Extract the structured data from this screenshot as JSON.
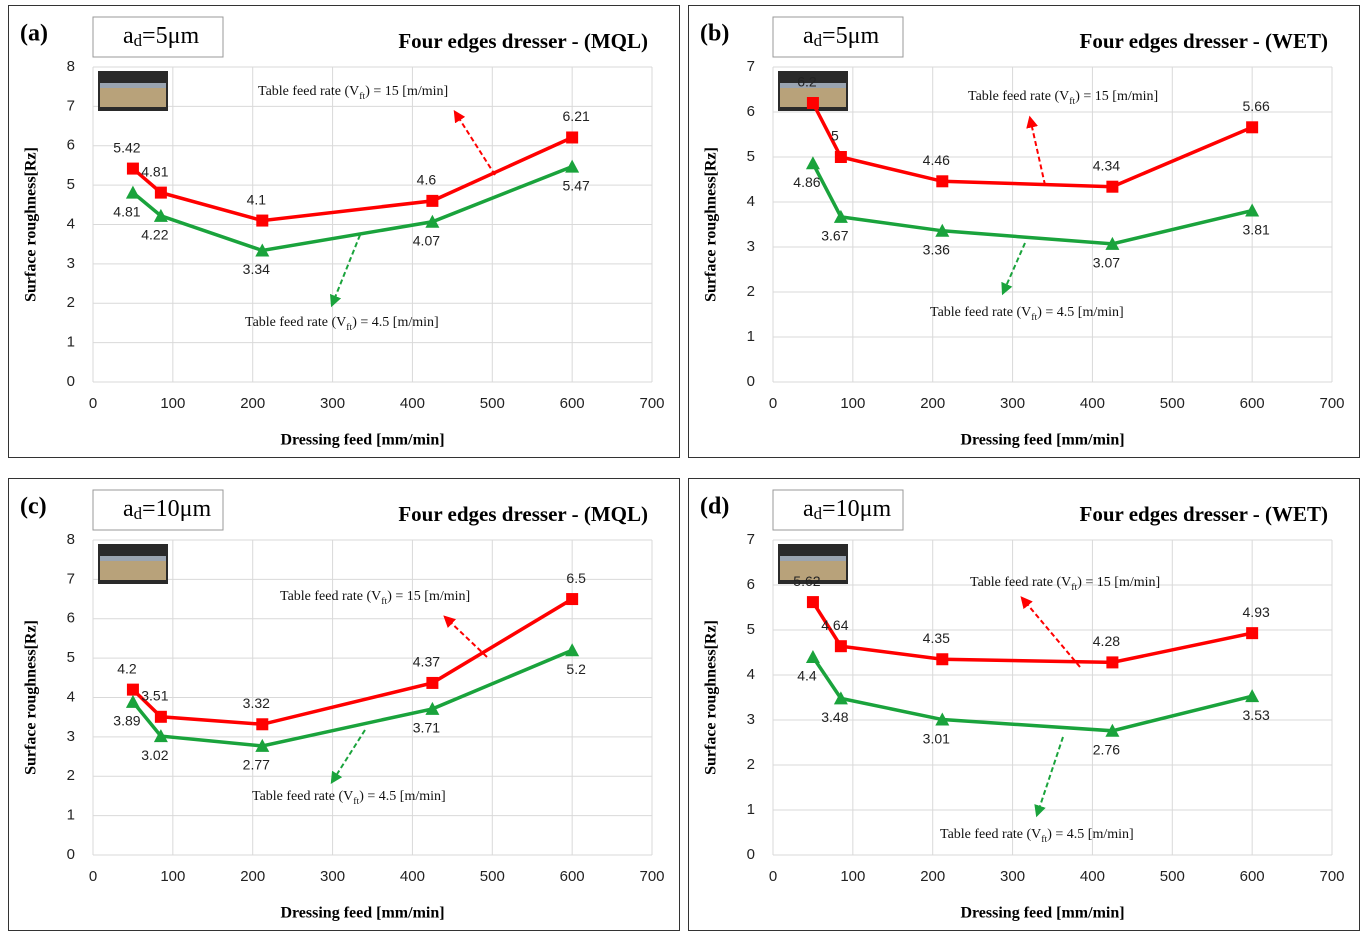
{
  "chart_data": [
    {
      "type": "line",
      "panel": "(a)",
      "depth": {
        "base": "a",
        "sub": "d",
        "rest": "=5μm"
      },
      "title": "Four edges dresser - (MQL)",
      "x_label": "Dressing feed [mm/min]",
      "y_label": "Surface roughness[Rz]",
      "x": [
        50,
        85,
        212,
        425,
        600
      ],
      "xlim": [
        0,
        700
      ],
      "xticks": [
        0,
        100,
        200,
        300,
        400,
        500,
        600,
        700
      ],
      "ylim": [
        0,
        8
      ],
      "yticks": [
        0,
        1,
        2,
        3,
        4,
        5,
        6,
        7,
        8
      ],
      "grid": true,
      "series": [
        {
          "color": "#ff0000",
          "marker": "square",
          "values": [
            5.42,
            4.81,
            4.1,
            4.6,
            6.21
          ],
          "annotation": {
            "text": "Table feed rate (V",
            "sub": "ft",
            "rest": ") = 15 [m/min]"
          }
        },
        {
          "color": "#1aa33c",
          "marker": "triangle",
          "values": [
            4.81,
            4.22,
            3.34,
            4.07,
            5.47
          ],
          "annotation": {
            "text": "Table feed rate (V",
            "sub": "ft",
            "rest": ") = 4.5 [m/min]"
          }
        }
      ]
    },
    {
      "type": "line",
      "panel": "(b)",
      "depth": {
        "base": "a",
        "sub": "d",
        "rest": "=5μm"
      },
      "title": "Four edges dresser - (WET)",
      "x_label": "Dressing feed [mm/min]",
      "y_label": "Surface roughness[Rz]",
      "x": [
        50,
        85,
        212,
        425,
        600
      ],
      "xlim": [
        0,
        700
      ],
      "xticks": [
        0,
        100,
        200,
        300,
        400,
        500,
        600,
        700
      ],
      "ylim": [
        0,
        7
      ],
      "yticks": [
        0,
        1,
        2,
        3,
        4,
        5,
        6,
        7
      ],
      "grid": true,
      "series": [
        {
          "color": "#ff0000",
          "marker": "square",
          "values": [
            6.2,
            5,
            4.46,
            4.34,
            5.66
          ],
          "annotation": {
            "text": "Table feed rate (V",
            "sub": "ft",
            "rest": ") = 15 [m/min]"
          }
        },
        {
          "color": "#1aa33c",
          "marker": "triangle",
          "values": [
            4.86,
            3.67,
            3.36,
            3.07,
            3.81
          ],
          "annotation": {
            "text": "Table feed rate (V",
            "sub": "ft",
            "rest": ") = 4.5 [m/min]"
          }
        }
      ]
    },
    {
      "type": "line",
      "panel": "(c)",
      "depth": {
        "base": "a",
        "sub": "d",
        "rest": "=10μm"
      },
      "title": "Four edges dresser - (MQL)",
      "x_label": "Dressing feed [mm/min]",
      "y_label": "Surface roughness[Rz]",
      "x": [
        50,
        85,
        212,
        425,
        600
      ],
      "xlim": [
        0,
        700
      ],
      "xticks": [
        0,
        100,
        200,
        300,
        400,
        500,
        600,
        700
      ],
      "ylim": [
        0,
        8
      ],
      "yticks": [
        0,
        1,
        2,
        3,
        4,
        5,
        6,
        7,
        8
      ],
      "grid": true,
      "series": [
        {
          "color": "#ff0000",
          "marker": "square",
          "values": [
            4.2,
            3.51,
            3.32,
            4.37,
            6.5
          ],
          "annotation": {
            "text": "Table feed rate (V",
            "sub": "ft",
            "rest": ") = 15 [m/min]"
          }
        },
        {
          "color": "#1aa33c",
          "marker": "triangle",
          "values": [
            3.89,
            3.02,
            2.77,
            3.71,
            5.2
          ],
          "annotation": {
            "text": "Table feed rate (V",
            "sub": "ft",
            "rest": ") = 4.5 [m/min]"
          }
        }
      ]
    },
    {
      "type": "line",
      "panel": "(d)",
      "depth": {
        "base": "a",
        "sub": "d",
        "rest": "=10μm"
      },
      "title": "Four edges dresser - (WET)",
      "x_label": "Dressing feed [mm/min]",
      "y_label": "Surface roughness[Rz]",
      "x": [
        50,
        85,
        212,
        425,
        600
      ],
      "xlim": [
        0,
        700
      ],
      "xticks": [
        0,
        100,
        200,
        300,
        400,
        500,
        600,
        700
      ],
      "ylim": [
        0,
        7
      ],
      "yticks": [
        0,
        1,
        2,
        3,
        4,
        5,
        6,
        7
      ],
      "grid": true,
      "series": [
        {
          "color": "#ff0000",
          "marker": "square",
          "values": [
            5.62,
            4.64,
            4.35,
            4.28,
            4.93
          ],
          "annotation": {
            "text": "Table feed rate (V",
            "sub": "ft",
            "rest": ") = 15 [m/min]"
          }
        },
        {
          "color": "#1aa33c",
          "marker": "triangle",
          "values": [
            4.4,
            3.48,
            3.01,
            2.76,
            3.53
          ],
          "annotation": {
            "text": "Table feed rate (V",
            "sub": "ft",
            "rest": ") = 4.5 [m/min]"
          }
        }
      ]
    }
  ]
}
